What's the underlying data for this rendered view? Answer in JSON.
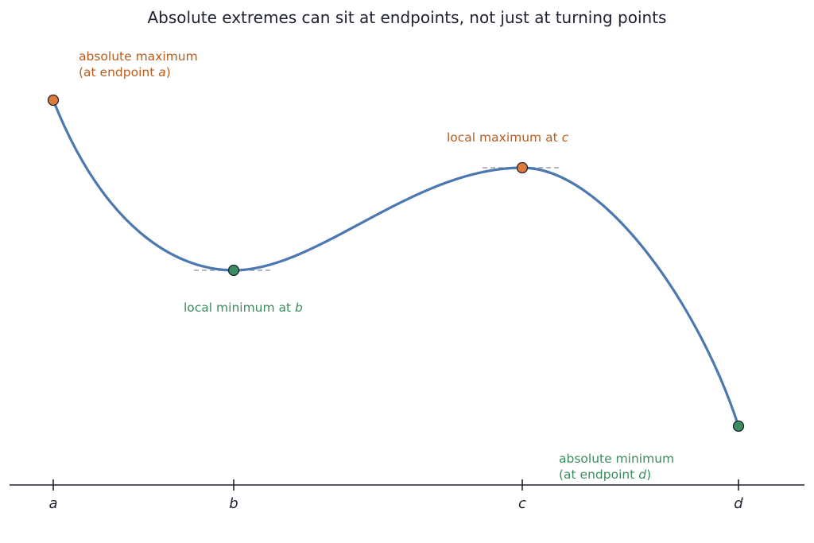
{
  "title": "Absolute extremes can sit at endpoints, not just at turning points",
  "colors": {
    "curve": "#4c78b0",
    "maximum": "#e07a3c",
    "maximum_text": "#b85c1f",
    "minimum": "#3b8c5e",
    "minimum_text": "#3b8c5e",
    "axis": "#1f2233",
    "tangent": "#9aa1ad"
  },
  "axis": {
    "ticks": [
      "a",
      "b",
      "c",
      "d"
    ]
  },
  "annotations": {
    "abs_max": {
      "line1": "absolute maximum",
      "line2_pre": "(at endpoint ",
      "line2_var": "a",
      "line2_post": ")"
    },
    "local_max": {
      "text": "local maximum at ",
      "var": "c"
    },
    "local_min": {
      "text": "local minimum at ",
      "var": "b"
    },
    "abs_min": {
      "line1": "absolute minimum",
      "line2_pre": "(at endpoint ",
      "line2_var": "d",
      "line2_post": ")"
    }
  },
  "points": [
    {
      "label": "a",
      "kind": "absolute maximum"
    },
    {
      "label": "b",
      "kind": "local minimum"
    },
    {
      "label": "c",
      "kind": "local maximum"
    },
    {
      "label": "d",
      "kind": "absolute minimum"
    }
  ]
}
